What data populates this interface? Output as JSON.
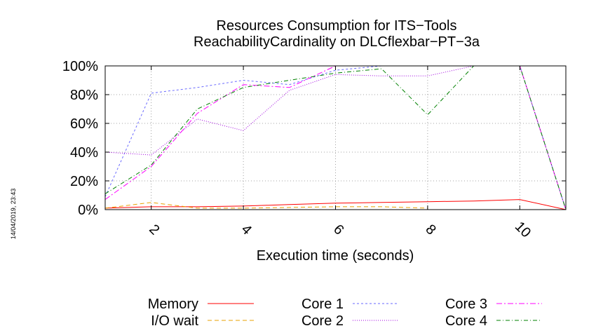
{
  "timestamp": "14/04/2019, 23:43",
  "chart_data": {
    "type": "line",
    "title": "Resources Consumption for ITS−Tools",
    "subtitle": "ReachabilityCardinality on DLCflexbar−PT−3a",
    "xlabel": "Execution time (seconds)",
    "ylabel": "",
    "xlim": [
      1,
      11
    ],
    "ylim": [
      0,
      100
    ],
    "xticks": [
      2,
      4,
      6,
      8,
      10
    ],
    "yticks": [
      0,
      20,
      40,
      60,
      80,
      100
    ],
    "ytick_labels": [
      "0%",
      "20%",
      "40%",
      "60%",
      "80%",
      "100%"
    ],
    "grid": true,
    "legend_position": "bottom",
    "series": [
      {
        "name": "Memory",
        "color": "#ff0000",
        "dash": "solid",
        "x": [
          1,
          2,
          3,
          4,
          5,
          6,
          7,
          8,
          9,
          10,
          11
        ],
        "y": [
          1,
          2,
          2,
          2.5,
          3.5,
          4.5,
          5,
          5.5,
          6,
          7,
          0
        ]
      },
      {
        "name": "I/O wait",
        "color": "#e8a000",
        "dash": "dashed",
        "x": [
          1,
          2,
          3,
          4,
          5,
          6,
          7,
          8
        ],
        "y": [
          1,
          5,
          1,
          1,
          1.5,
          2,
          2,
          1
        ]
      },
      {
        "name": "Core 1",
        "color": "#6a6aff",
        "dash": "dashed-fine",
        "x": [
          1,
          2,
          3,
          4,
          5,
          6,
          7,
          8,
          9,
          10,
          11
        ],
        "y": [
          9,
          81,
          85,
          90,
          87,
          97,
          100,
          100,
          100,
          100,
          0
        ]
      },
      {
        "name": "Core 2",
        "color": "#a000e0",
        "dash": "dotted",
        "x": [
          1,
          2,
          3,
          4,
          5,
          6,
          7,
          8,
          9,
          10,
          11
        ],
        "y": [
          40,
          38,
          63,
          55,
          83,
          94,
          93,
          93,
          100,
          100,
          0
        ]
      },
      {
        "name": "Core 3",
        "color": "#ff00ff",
        "dash": "dash-dot",
        "x": [
          1,
          2,
          3,
          4,
          5,
          6,
          7,
          8,
          9,
          10,
          11
        ],
        "y": [
          7,
          30,
          67,
          87,
          85,
          100,
          100,
          100,
          100,
          100,
          0
        ]
      },
      {
        "name": "Core 4",
        "color": "#008000",
        "dash": "dash-dot-long",
        "x": [
          1,
          2,
          3,
          4,
          5,
          6,
          7,
          8,
          9,
          10,
          11
        ],
        "y": [
          11,
          31,
          70,
          85,
          90,
          95,
          98,
          66,
          100,
          100,
          0
        ]
      }
    ]
  }
}
